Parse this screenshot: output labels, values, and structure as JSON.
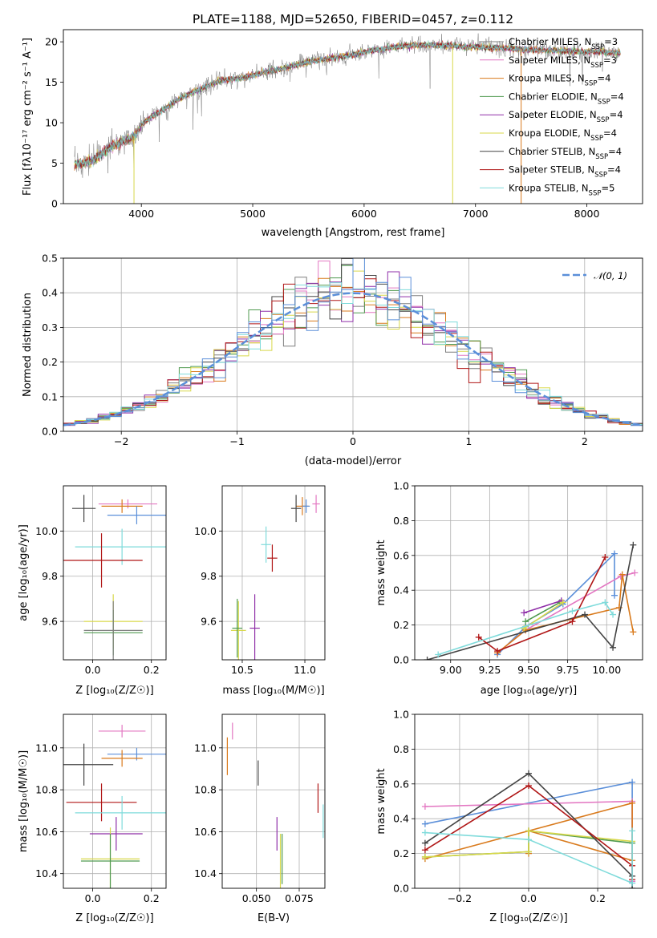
{
  "title": "PLATE=1188, MJD=52650, FIBERID=0457, z=0.112",
  "colors": {
    "chabrier_miles": "#7f7f7f",
    "salpeter_miles": "#e377c2",
    "kroupa_miles": "#d97a1c",
    "chabrier_elodie": "#4f9a4f",
    "salpeter_elodie": "#8f2fa8",
    "kroupa_elodie": "#d8d84a",
    "chabrier_stelib": "#444444",
    "salpeter_stelib": "#b01616",
    "kroupa_stelib": "#7fdbdb",
    "normal_curve": "#5b8fd9",
    "blue": "#5b8fd9"
  },
  "chart_data": [
    {
      "id": "spectrum",
      "type": "line",
      "xlabel": "wavelength [Angstrom, rest frame]",
      "ylabel": "Flux [fλ10⁻¹⁷ erg cm⁻² s⁻¹ A⁻¹]",
      "xlim": [
        3300,
        8500
      ],
      "ylim": [
        0,
        21.5
      ],
      "xticks": [
        "4000",
        "5000",
        "6000",
        "7000",
        "8000"
      ],
      "yticks": [
        "0",
        "5",
        "10",
        "15",
        "20"
      ],
      "legend_position": "right",
      "legend": [
        {
          "label": "Chabrier MILES, N",
          "sub": "SSP",
          "suffix": "=3",
          "color": "#7f7f7f"
        },
        {
          "label": "Salpeter MILES, N",
          "sub": "SSP",
          "suffix": "=3",
          "color": "#e377c2"
        },
        {
          "label": "Kroupa MILES, N",
          "sub": "SSP",
          "suffix": "=4",
          "color": "#d97a1c"
        },
        {
          "label": "Chabrier ELODIE, N",
          "sub": "SSP",
          "suffix": "=4",
          "color": "#4f9a4f"
        },
        {
          "label": "Salpeter ELODIE, N",
          "sub": "SSP",
          "suffix": "=4",
          "color": "#8f2fa8"
        },
        {
          "label": "Kroupa ELODIE, N",
          "sub": "SSP",
          "suffix": "=4",
          "color": "#d8d84a"
        },
        {
          "label": "Chabrier STELIB, N",
          "sub": "SSP",
          "suffix": "=4",
          "color": "#444444"
        },
        {
          "label": "Salpeter STELIB, N",
          "sub": "SSP",
          "suffix": "=4",
          "color": "#b01616"
        },
        {
          "label": "Kroupa STELIB, N",
          "sub": "SSP",
          "suffix": "=5",
          "color": "#7fdbdb"
        }
      ],
      "continuum": {
        "x": [
          3400,
          3550,
          3700,
          3850,
          3950,
          4000,
          4100,
          4200,
          4300,
          4500,
          4700,
          4900,
          5100,
          5300,
          5500,
          5700,
          5900,
          6100,
          6300,
          6500,
          6700,
          6900,
          7100,
          7300,
          7500,
          7700,
          7900,
          8100,
          8300
        ],
        "y": [
          4.8,
          5.2,
          6.8,
          7.8,
          8.4,
          9.8,
          10.8,
          11.6,
          12.6,
          14.0,
          15.2,
          15.5,
          16.2,
          16.8,
          17.5,
          18.0,
          18.4,
          19.0,
          19.4,
          19.6,
          19.6,
          19.4,
          19.3,
          19.2,
          19.0,
          18.9,
          18.8,
          18.8,
          18.6
        ]
      },
      "dips": [
        {
          "x": 3934,
          "y": 0.0
        },
        {
          "x": 6795,
          "y": 0.0
        },
        {
          "x": 7410,
          "y": 0.0
        }
      ]
    },
    {
      "id": "residuals",
      "type": "step",
      "xlabel": "(data-model)/error",
      "ylabel": "Normed distribution",
      "xlim": [
        -2.5,
        2.5
      ],
      "ylim": [
        0,
        0.5
      ],
      "xticks": [
        "−2",
        "−1",
        "0",
        "1",
        "2"
      ],
      "yticks": [
        "0.0",
        "0.1",
        "0.2",
        "0.3",
        "0.4",
        "0.5"
      ],
      "legend_position": "top-right",
      "legend_label": "𝒩(0, 1)",
      "normal_curve": {
        "mean": 0,
        "sd": 1
      },
      "bin_width": 0.1
    },
    {
      "id": "age_vs_Z",
      "type": "errorbar",
      "xlabel": "Z [log₁₀(Z/Z☉)]",
      "ylabel": "age  [log₁₀(age/yr)]",
      "xlim": [
        -0.1,
        0.25
      ],
      "ylim": [
        9.43,
        10.2
      ],
      "xticks": [
        "0.0",
        "0.2"
      ],
      "yticks": [
        "9.6",
        "9.8",
        "10.0"
      ],
      "points": [
        {
          "x": 0.12,
          "y": 10.12,
          "xerr": 0.1,
          "yerr": 0.02,
          "color": "#e377c2"
        },
        {
          "x": 0.1,
          "y": 10.11,
          "xerr": 0.07,
          "yerr": 0.03,
          "color": "#d97a1c"
        },
        {
          "x": 0.15,
          "y": 10.07,
          "xerr": 0.1,
          "yerr": 0.04,
          "color": "#5b8fd9"
        },
        {
          "x": -0.03,
          "y": 10.1,
          "xerr": 0.04,
          "yerr": 0.06,
          "color": "#444444"
        },
        {
          "x": 0.1,
          "y": 9.93,
          "xerr": 0.16,
          "yerr": 0.08,
          "color": "#7fdbdb"
        },
        {
          "x": 0.03,
          "y": 9.87,
          "xerr": 0.14,
          "yerr": 0.12,
          "color": "#b01616"
        },
        {
          "x": 0.07,
          "y": 9.6,
          "xerr": 0.1,
          "yerr": 0.12,
          "color": "#d8d84a"
        },
        {
          "x": 0.07,
          "y": 9.55,
          "xerr": 0.1,
          "yerr": 0.1,
          "color": "#4f9a4f"
        },
        {
          "x": 0.07,
          "y": 9.56,
          "xerr": 0.1,
          "yerr": 0.13,
          "color": "#7f7f7f"
        }
      ]
    },
    {
      "id": "age_vs_mass",
      "type": "errorbar",
      "xlabel": "mass [log₁₀(M/M☉)]",
      "ylabel": "",
      "xlim": [
        10.34,
        11.16
      ],
      "ylim": [
        9.43,
        10.2
      ],
      "xticks": [
        "10.5",
        "11.0"
      ],
      "yticks": [
        "9.6",
        "9.8",
        "10.0"
      ],
      "points": [
        {
          "x": 11.09,
          "y": 10.12,
          "xerr": 0.03,
          "yerr": 0.04,
          "color": "#e377c2"
        },
        {
          "x": 10.98,
          "y": 10.11,
          "xerr": 0.05,
          "yerr": 0.04,
          "color": "#d97a1c"
        },
        {
          "x": 11.01,
          "y": 10.11,
          "xerr": 0.03,
          "yerr": 0.03,
          "color": "#5b8fd9"
        },
        {
          "x": 10.93,
          "y": 10.1,
          "xerr": 0.04,
          "yerr": 0.06,
          "color": "#444444"
        },
        {
          "x": 10.69,
          "y": 9.94,
          "xerr": 0.04,
          "yerr": 0.08,
          "color": "#7fdbdb"
        },
        {
          "x": 10.74,
          "y": 9.88,
          "xerr": 0.04,
          "yerr": 0.06,
          "color": "#b01616"
        },
        {
          "x": 10.6,
          "y": 9.57,
          "xerr": 0.04,
          "yerr": 0.15,
          "color": "#8f2fa8"
        },
        {
          "x": 10.47,
          "y": 9.56,
          "xerr": 0.06,
          "yerr": 0.13,
          "color": "#d8d84a"
        },
        {
          "x": 10.46,
          "y": 9.57,
          "xerr": 0.04,
          "yerr": 0.13,
          "color": "#4f9a4f"
        }
      ]
    },
    {
      "id": "weight_vs_age",
      "type": "line",
      "xlabel": "age  [log₁₀(age/yr)]",
      "ylabel": "mass weight",
      "xlim": [
        8.77,
        10.23
      ],
      "ylim": [
        0,
        1
      ],
      "xticks": [
        "9.00",
        "9.25",
        "9.50",
        "9.75",
        "10.00"
      ],
      "yticks": [
        "0.0",
        "0.2",
        "0.4",
        "0.6",
        "0.8",
        "1.0"
      ],
      "series": [
        {
          "color": "#5b8fd9",
          "x": [
            9.3,
            9.48,
            9.72,
            10.05,
            10.05
          ],
          "y": [
            0.03,
            0.19,
            0.32,
            0.61,
            0.37
          ]
        },
        {
          "color": "#e377c2",
          "x": [
            9.3,
            9.48,
            10.09,
            10.18
          ],
          "y": [
            0.04,
            0.17,
            0.48,
            0.5
          ]
        },
        {
          "color": "#d97a1c",
          "x": [
            9.3,
            9.48,
            10.08,
            10.1,
            10.17
          ],
          "y": [
            0.04,
            0.17,
            0.3,
            0.49,
            0.16
          ]
        },
        {
          "color": "#4f9a4f",
          "x": [
            9.48,
            9.7
          ],
          "y": [
            0.22,
            0.33
          ]
        },
        {
          "color": "#8f2fa8",
          "x": [
            9.47,
            9.71
          ],
          "y": [
            0.27,
            0.34
          ]
        },
        {
          "color": "#d8d84a",
          "x": [
            9.47,
            9.72
          ],
          "y": [
            0.18,
            0.33
          ]
        },
        {
          "color": "#444444",
          "x": [
            8.85,
            9.86,
            10.04,
            10.17
          ],
          "y": [
            0.0,
            0.26,
            0.07,
            0.66
          ]
        },
        {
          "color": "#b01616",
          "x": [
            9.18,
            9.3,
            9.78,
            9.99
          ],
          "y": [
            0.13,
            0.05,
            0.22,
            0.59
          ]
        },
        {
          "color": "#7fdbdb",
          "x": [
            8.92,
            9.78,
            9.99,
            10.04
          ],
          "y": [
            0.03,
            0.28,
            0.33,
            0.26
          ]
        }
      ]
    },
    {
      "id": "mass_vs_Z",
      "type": "errorbar",
      "xlabel": "Z [log₁₀(Z/Z☉)]",
      "ylabel": "mass [log₁₀(M/M☉)]",
      "xlim": [
        -0.1,
        0.25
      ],
      "ylim": [
        10.33,
        11.16
      ],
      "xticks": [
        "0.0",
        "0.2"
      ],
      "yticks": [
        "10.4",
        "10.6",
        "10.8",
        "11.0"
      ],
      "points": [
        {
          "x": 0.1,
          "y": 11.08,
          "xerr": 0.08,
          "yerr": 0.03,
          "color": "#e377c2"
        },
        {
          "x": 0.15,
          "y": 10.97,
          "xerr": 0.1,
          "yerr": 0.03,
          "color": "#5b8fd9"
        },
        {
          "x": 0.1,
          "y": 10.95,
          "xerr": 0.07,
          "yerr": 0.04,
          "color": "#d97a1c"
        },
        {
          "x": -0.03,
          "y": 10.92,
          "xerr": 0.1,
          "yerr": 0.1,
          "color": "#444444"
        },
        {
          "x": 0.03,
          "y": 10.74,
          "xerr": 0.12,
          "yerr": 0.09,
          "color": "#b01616"
        },
        {
          "x": 0.1,
          "y": 10.69,
          "xerr": 0.16,
          "yerr": 0.08,
          "color": "#7fdbdb"
        },
        {
          "x": 0.08,
          "y": 10.59,
          "xerr": 0.09,
          "yerr": 0.08,
          "color": "#8f2fa8"
        },
        {
          "x": 0.06,
          "y": 10.47,
          "xerr": 0.1,
          "yerr": 0.15,
          "color": "#d8d84a"
        },
        {
          "x": 0.06,
          "y": 10.46,
          "xerr": 0.1,
          "yerr": 0.13,
          "color": "#4f9a4f"
        }
      ]
    },
    {
      "id": "mass_vs_ebv",
      "type": "errorbar",
      "xlabel": "E(B-V)",
      "ylabel": "",
      "xlim": [
        0.03,
        0.09
      ],
      "ylim": [
        10.33,
        11.16
      ],
      "xticks": [
        "0.050",
        "0.075"
      ],
      "yticks": [
        "10.4",
        "10.6",
        "10.8",
        "11.0"
      ],
      "points": [
        {
          "x": 0.036,
          "y": 11.08,
          "xerr": 0.0,
          "yerr": 0.04,
          "color": "#e377c2"
        },
        {
          "x": 0.033,
          "y": 10.96,
          "xerr": 0.0,
          "yerr": 0.09,
          "color": "#d97a1c"
        },
        {
          "x": 0.051,
          "y": 10.88,
          "xerr": 0.0,
          "yerr": 0.06,
          "color": "#444444"
        },
        {
          "x": 0.086,
          "y": 10.76,
          "xerr": 0.0,
          "yerr": 0.07,
          "color": "#b01616"
        },
        {
          "x": 0.089,
          "y": 10.65,
          "xerr": 0.0,
          "yerr": 0.08,
          "color": "#7fdbdb"
        },
        {
          "x": 0.062,
          "y": 10.59,
          "xerr": 0.0,
          "yerr": 0.08,
          "color": "#8f2fa8"
        },
        {
          "x": 0.064,
          "y": 10.46,
          "xerr": 0.0,
          "yerr": 0.13,
          "color": "#d8d84a"
        },
        {
          "x": 0.065,
          "y": 10.47,
          "xerr": 0.0,
          "yerr": 0.12,
          "color": "#4f9a4f"
        }
      ]
    },
    {
      "id": "weight_vs_Z",
      "type": "line",
      "xlabel": "Z [log₁₀(Z/Z☉)]",
      "ylabel": "mass weight",
      "xlim": [
        -0.33,
        0.33
      ],
      "ylim": [
        0,
        1
      ],
      "xticks": [
        "−0.2",
        "0.0",
        "0.2"
      ],
      "yticks": [
        "0.0",
        "0.2",
        "0.4",
        "0.6",
        "0.8",
        "1.0"
      ],
      "series": [
        {
          "color": "#5b8fd9",
          "x": [
            -0.3,
            0.3,
            0.3
          ],
          "y": [
            0.37,
            0.61,
            0.03
          ]
        },
        {
          "color": "#e377c2",
          "x": [
            -0.3,
            0.3,
            0.3
          ],
          "y": [
            0.47,
            0.5,
            0.04
          ]
        },
        {
          "color": "#d97a1c",
          "x": [
            -0.3,
            0.3,
            0.3,
            0.0,
            0.0
          ],
          "y": [
            0.17,
            0.49,
            0.16,
            0.33,
            0.2
          ]
        },
        {
          "color": "#4f9a4f",
          "x": [
            -0.3,
            0.0,
            0.0,
            0.3
          ],
          "y": [
            0.18,
            0.21,
            0.33,
            0.26
          ]
        },
        {
          "color": "#d8d84a",
          "x": [
            -0.3,
            0.0,
            0.0,
            0.3
          ],
          "y": [
            0.18,
            0.21,
            0.33,
            0.27
          ]
        },
        {
          "color": "#444444",
          "x": [
            -0.3,
            0.0,
            0.3,
            0.3
          ],
          "y": [
            0.26,
            0.66,
            0.07,
            0.0
          ]
        },
        {
          "color": "#b01616",
          "x": [
            -0.3,
            0.0,
            0.3,
            0.3
          ],
          "y": [
            0.22,
            0.59,
            0.13,
            0.05
          ]
        },
        {
          "color": "#7fdbdb",
          "x": [
            -0.3,
            0.0,
            0.3,
            0.3
          ],
          "y": [
            0.32,
            0.28,
            0.03,
            0.33
          ]
        }
      ]
    }
  ]
}
